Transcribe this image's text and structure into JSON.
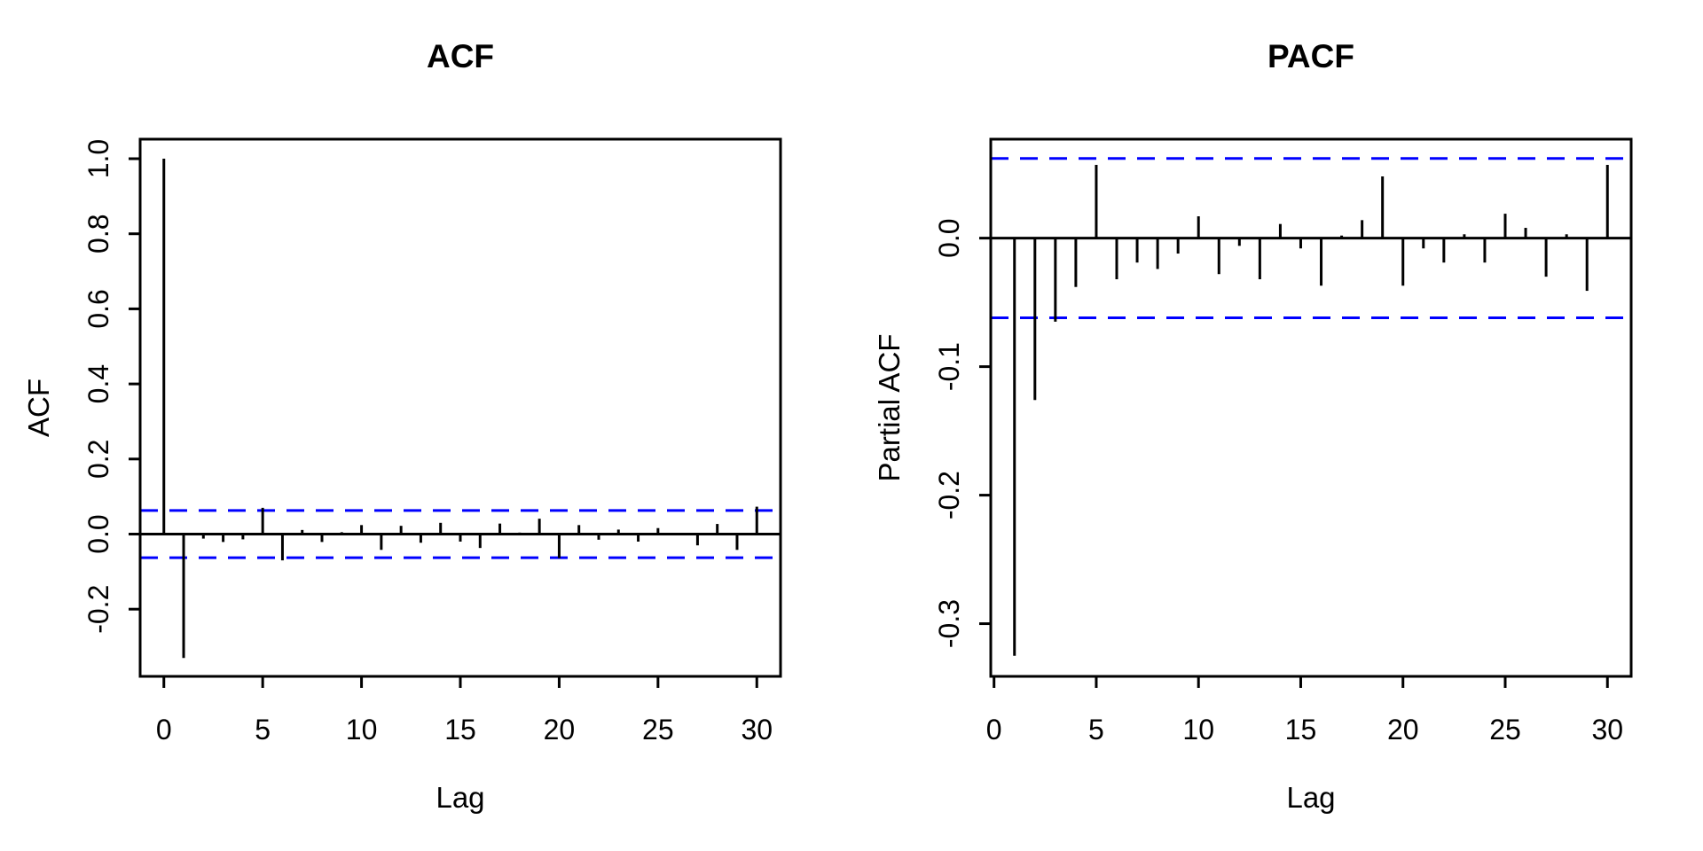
{
  "figure": {
    "background": "#ffffff",
    "spike_color": "#000000",
    "frame_color": "#000000",
    "confidence_line_color": "#0000ff"
  },
  "chart_data": [
    {
      "type": "bar",
      "subtype": "acf-spike-plot",
      "title": "ACF",
      "xlabel": "Lag",
      "ylabel": "ACF",
      "x": [
        0,
        1,
        2,
        3,
        4,
        5,
        6,
        7,
        8,
        9,
        10,
        11,
        12,
        13,
        14,
        15,
        16,
        17,
        18,
        19,
        20,
        21,
        22,
        23,
        24,
        25,
        26,
        27,
        28,
        29,
        30
      ],
      "values": [
        1.0,
        -0.33,
        -0.012,
        -0.021,
        -0.014,
        0.07,
        -0.07,
        0.011,
        -0.021,
        0.005,
        0.024,
        -0.042,
        0.022,
        -0.023,
        0.03,
        -0.02,
        -0.037,
        0.028,
        0.004,
        0.041,
        -0.064,
        0.024,
        -0.015,
        0.012,
        -0.02,
        0.016,
        0.003,
        -0.03,
        0.027,
        -0.042,
        0.073
      ],
      "confidence_bound": 0.063,
      "xlim": [
        -1.2,
        31.2
      ],
      "ylim": [
        -0.379,
        1.052
      ],
      "xticks": [
        0,
        5,
        10,
        15,
        20,
        25,
        30
      ],
      "xtick_labels": [
        "0",
        "5",
        "10",
        "15",
        "20",
        "25",
        "30"
      ],
      "ytick_values": [
        1.0,
        0.8,
        0.6,
        0.4,
        0.2,
        0.0,
        -0.2
      ],
      "ytick_labels": [
        "1.0",
        "0.8",
        "0.6",
        "0.4",
        "0.2",
        "0.0",
        "-0.2"
      ],
      "grid": false,
      "legend": null
    },
    {
      "type": "bar",
      "subtype": "pacf-spike-plot",
      "title": "PACF",
      "xlabel": "Lag",
      "ylabel": "Partial ACF",
      "x": [
        1,
        2,
        3,
        4,
        5,
        6,
        7,
        8,
        9,
        10,
        11,
        12,
        13,
        14,
        15,
        16,
        17,
        18,
        19,
        20,
        21,
        22,
        23,
        24,
        25,
        26,
        27,
        28,
        29,
        30
      ],
      "values": [
        -0.325,
        -0.126,
        -0.065,
        -0.038,
        0.057,
        -0.032,
        -0.019,
        -0.024,
        -0.012,
        0.017,
        -0.028,
        -0.006,
        -0.032,
        0.011,
        -0.008,
        -0.037,
        0.002,
        0.014,
        0.048,
        -0.037,
        -0.008,
        -0.019,
        0.003,
        -0.019,
        0.019,
        0.008,
        -0.03,
        0.003,
        -0.041,
        0.057
      ],
      "confidence_bound": 0.062,
      "xlim": [
        -0.16,
        31.16
      ],
      "ylim": [
        -0.341,
        0.077
      ],
      "xticks": [
        0,
        5,
        10,
        15,
        20,
        25,
        30
      ],
      "xtick_labels": [
        "0",
        "5",
        "10",
        "15",
        "20",
        "25",
        "30"
      ],
      "ytick_values": [
        0.0,
        -0.1,
        -0.2,
        -0.3
      ],
      "ytick_labels": [
        "0.0",
        "-0.1",
        "-0.2",
        "-0.3"
      ],
      "grid": false,
      "legend": null
    }
  ]
}
